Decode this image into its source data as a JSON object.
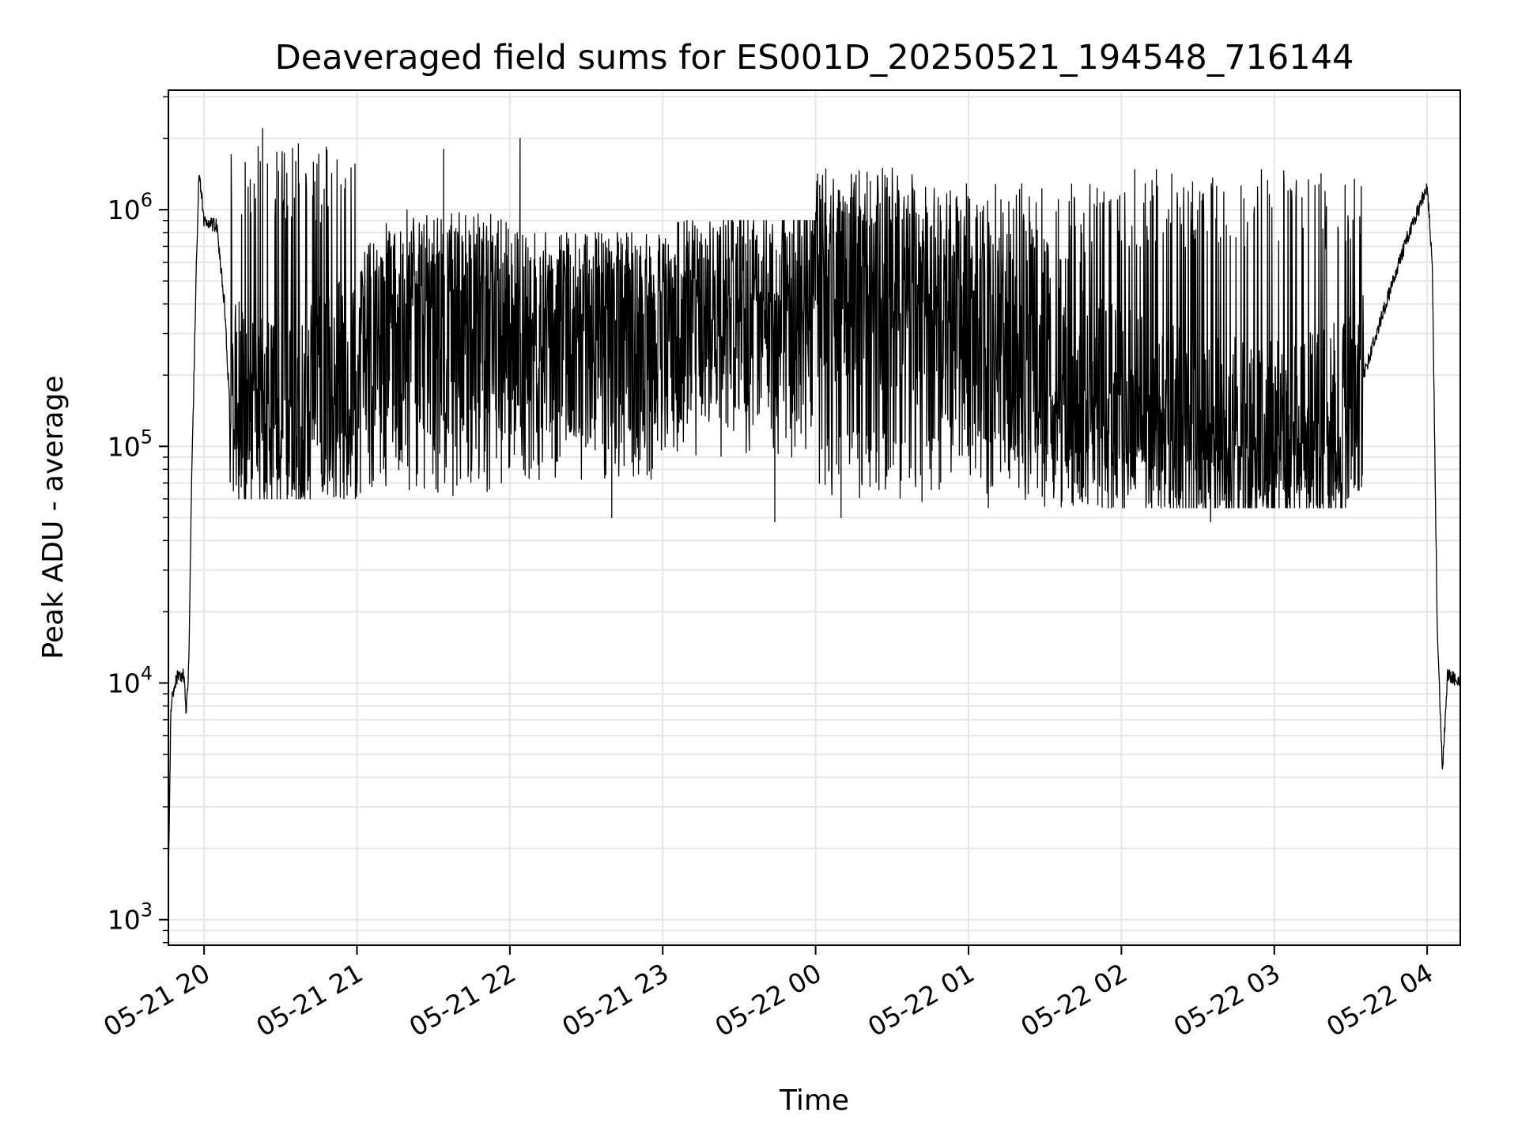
{
  "chart_data": {
    "type": "line",
    "title": "Deaveraged field sums for ES001D_20250521_194548_716144",
    "xlabel": "Time",
    "ylabel": "Peak ADU - average",
    "yscale": "log",
    "ylim": [
      780,
      3200000
    ],
    "xlim": [
      "2025-05-21 19:46",
      "2025-05-22 04:13"
    ],
    "grid": true,
    "line_color": "#000000",
    "grid_color": "#e6e6e6",
    "x_ticks": [
      {
        "value": "2025-05-21 20:00",
        "label": "05-21 20"
      },
      {
        "value": "2025-05-21 21:00",
        "label": "05-21 21"
      },
      {
        "value": "2025-05-21 22:00",
        "label": "05-21 22"
      },
      {
        "value": "2025-05-21 23:00",
        "label": "05-21 23"
      },
      {
        "value": "2025-05-22 00:00",
        "label": "05-22 00"
      },
      {
        "value": "2025-05-22 01:00",
        "label": "05-22 01"
      },
      {
        "value": "2025-05-22 02:00",
        "label": "05-22 02"
      },
      {
        "value": "2025-05-22 03:00",
        "label": "05-22 03"
      },
      {
        "value": "2025-05-22 04:00",
        "label": "05-22 04"
      }
    ],
    "y_ticks": [
      {
        "value": 1000,
        "base": "10",
        "exp": "3"
      },
      {
        "value": 10000,
        "base": "10",
        "exp": "4"
      },
      {
        "value": 100000,
        "base": "10",
        "exp": "5"
      },
      {
        "value": 1000000,
        "base": "10",
        "exp": "6"
      }
    ],
    "series_description_values": [
      {
        "time": "2025-05-21 19:46",
        "value": 1500
      },
      {
        "time": "2025-05-21 19:47",
        "value": 8000
      },
      {
        "time": "2025-05-21 19:49",
        "value": 10500
      },
      {
        "time": "2025-05-21 19:52",
        "value": 11000
      },
      {
        "time": "2025-05-21 19:53",
        "value": 7500
      },
      {
        "time": "2025-05-21 19:54",
        "value": 12000
      },
      {
        "time": "2025-05-21 19:55",
        "value": 60000
      },
      {
        "time": "2025-05-21 19:57",
        "value": 600000
      },
      {
        "time": "2025-05-21 19:58",
        "value": 1500000
      },
      {
        "time": "2025-05-21 20:00",
        "value": 900000
      },
      {
        "time": "2025-05-21 20:05",
        "value": 850000
      },
      {
        "time": "2025-05-21 20:08",
        "value": 400000
      },
      {
        "time": "2025-05-21 20:10",
        "value": 150000
      },
      {
        "time": "2025-05-21 20:35",
        "value": 130000
      },
      {
        "time": "2025-05-21 21:00",
        "value": 250000
      },
      {
        "time": "2025-05-21 21:30",
        "value": 350000
      },
      {
        "time": "2025-05-21 22:00",
        "value": 320000
      },
      {
        "time": "2025-05-21 22:30",
        "value": 300000
      },
      {
        "time": "2025-05-21 23:00",
        "value": 330000
      },
      {
        "time": "2025-05-21 23:30",
        "value": 380000
      },
      {
        "time": "2025-05-22 00:00",
        "value": 520000
      },
      {
        "time": "2025-05-22 00:30",
        "value": 480000
      },
      {
        "time": "2025-05-22 01:00",
        "value": 280000
      },
      {
        "time": "2025-05-22 01:30",
        "value": 190000
      },
      {
        "time": "2025-05-22 02:00",
        "value": 140000
      },
      {
        "time": "2025-05-22 02:30",
        "value": 110000
      },
      {
        "time": "2025-05-22 03:00",
        "value": 100000
      },
      {
        "time": "2025-05-22 03:30",
        "value": 130000
      },
      {
        "time": "2025-05-22 03:40",
        "value": 300000
      },
      {
        "time": "2025-05-22 03:52",
        "value": 750000
      },
      {
        "time": "2025-05-22 04:00",
        "value": 1250000
      },
      {
        "time": "2025-05-22 04:02",
        "value": 600000
      },
      {
        "time": "2025-05-22 04:04",
        "value": 16000
      },
      {
        "time": "2025-05-22 04:06",
        "value": 4200
      },
      {
        "time": "2025-05-22 04:08",
        "value": 11000
      },
      {
        "time": "2025-05-22 04:13",
        "value": 10000
      }
    ],
    "noise_envelope": [
      {
        "from": "2025-05-21 20:10",
        "to": "2025-05-21 21:00",
        "low": 60000,
        "high": 1900000
      },
      {
        "from": "2025-05-21 21:00",
        "to": "2025-05-21 22:00",
        "low": 60000,
        "high": 1000000
      },
      {
        "from": "2025-05-21 22:00",
        "to": "2025-05-21 23:00",
        "low": 70000,
        "high": 800000
      },
      {
        "from": "2025-05-21 23:00",
        "to": "2025-05-22 00:00",
        "low": 90000,
        "high": 900000
      },
      {
        "from": "2025-05-22 00:00",
        "to": "2025-05-22 00:40",
        "low": 60000,
        "high": 1500000
      },
      {
        "from": "2025-05-22 00:40",
        "to": "2025-05-22 02:00",
        "low": 55000,
        "high": 1300000
      },
      {
        "from": "2025-05-22 02:00",
        "to": "2025-05-22 03:35",
        "low": 55000,
        "high": 1500000
      }
    ],
    "spikes": [
      {
        "time": "2025-05-21 20:23",
        "value": 2200000
      },
      {
        "time": "2025-05-21 20:37",
        "value": 1900000
      },
      {
        "time": "2025-05-21 21:34",
        "value": 1800000
      },
      {
        "time": "2025-05-21 22:04",
        "value": 2000000
      },
      {
        "time": "2025-05-21 22:40",
        "value": 50000
      },
      {
        "time": "2025-05-21 23:44",
        "value": 48000
      },
      {
        "time": "2025-05-22 00:10",
        "value": 50000
      },
      {
        "time": "2025-05-22 02:35",
        "value": 48000
      }
    ]
  }
}
